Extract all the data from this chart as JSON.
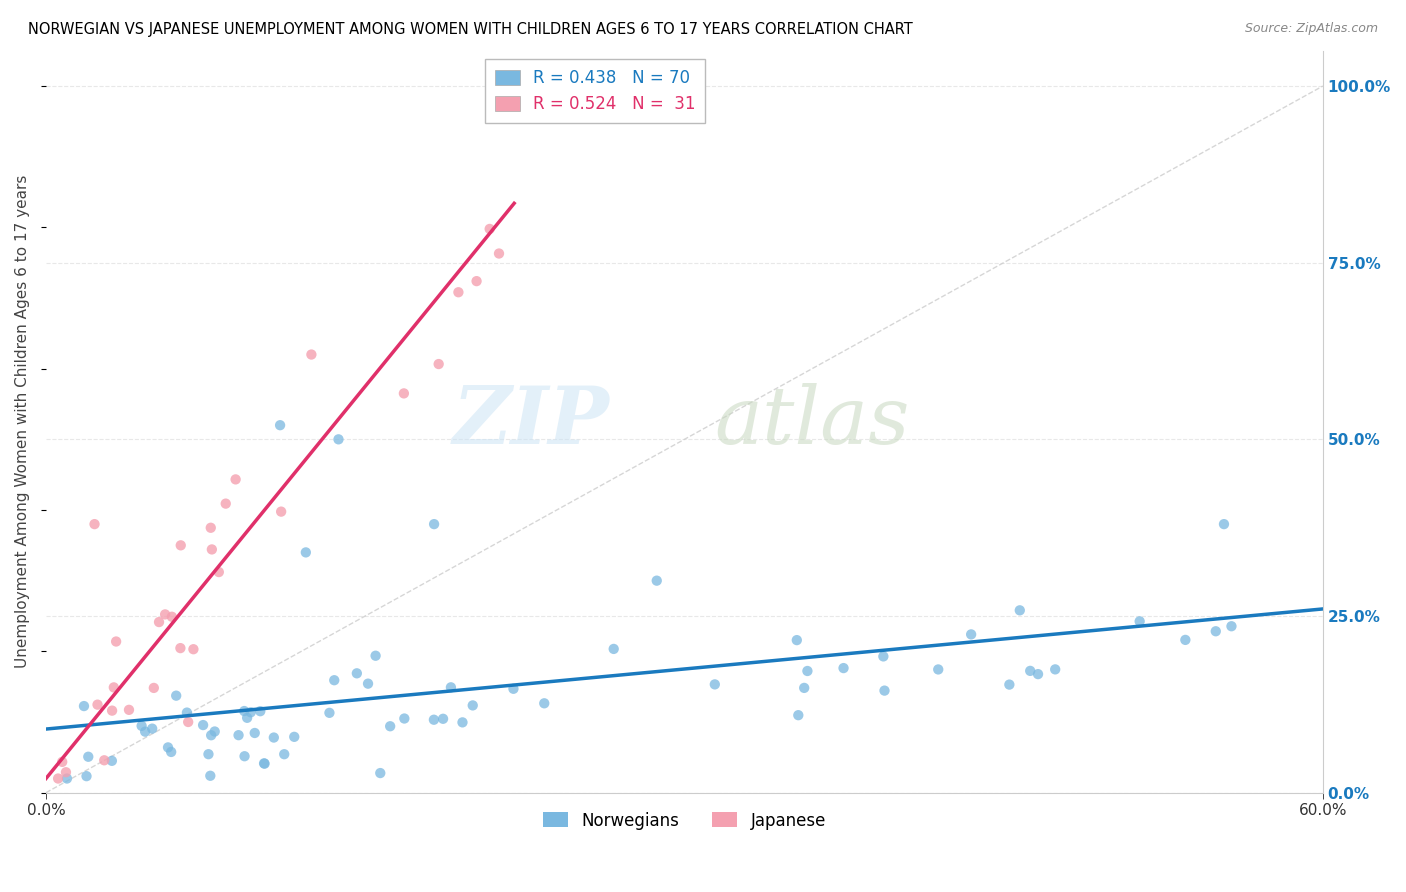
{
  "title": "NORWEGIAN VS JAPANESE UNEMPLOYMENT AMONG WOMEN WITH CHILDREN AGES 6 TO 17 YEARS CORRELATION CHART",
  "source": "Source: ZipAtlas.com",
  "ylabel": "Unemployment Among Women with Children Ages 6 to 17 years",
  "yticks_labels": [
    "0.0%",
    "25.0%",
    "50.0%",
    "75.0%",
    "100.0%"
  ],
  "ytick_vals": [
    0.0,
    0.25,
    0.5,
    0.75,
    1.0
  ],
  "xmin": 0.0,
  "xmax": 0.6,
  "ymin": 0.0,
  "ymax": 1.05,
  "norwegian_R": 0.438,
  "norwegian_N": 70,
  "japanese_R": 0.524,
  "japanese_N": 31,
  "norwegian_color": "#7ab8e0",
  "japanese_color": "#f4a0b0",
  "regression_line_color_norwegian": "#1a7abf",
  "regression_line_color_japanese": "#e0306a",
  "diagonal_color": "#cccccc",
  "background_color": "#ffffff",
  "grid_color": "#e8e8e8",
  "title_color": "#000000",
  "source_color": "#888888",
  "ylabel_color": "#444444",
  "right_tick_color": "#1a7abf",
  "bottom_tick_color": "#333333"
}
